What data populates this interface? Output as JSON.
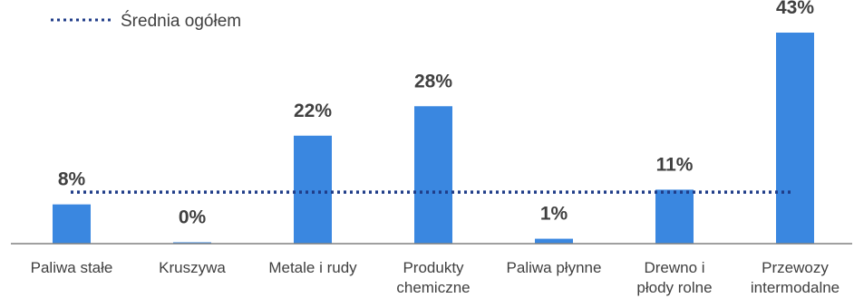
{
  "chart_data": {
    "type": "bar",
    "categories": [
      [
        "Paliwa stałe"
      ],
      [
        "Kruszywa"
      ],
      [
        "Metale i rudy"
      ],
      [
        "Produkty",
        "chemiczne"
      ],
      [
        "Paliwa płynne"
      ],
      [
        "Drewno i",
        "płody rolne"
      ],
      [
        "Przewozy",
        "intermodalne"
      ]
    ],
    "values": [
      8,
      0,
      22,
      28,
      1,
      11,
      43
    ],
    "value_labels": [
      "8%",
      "0%",
      "22%",
      "28%",
      "1%",
      "11%",
      "43%"
    ],
    "average": {
      "name": "Średnia ogółem",
      "value": 10.5
    },
    "ylim": [
      0,
      43
    ],
    "unit": "%",
    "grid": false,
    "legend_position": "top-left",
    "colors": {
      "bar": "#3A87E0",
      "average_line": "#1F3C88",
      "axis": "#808080",
      "text": "#404040"
    }
  }
}
